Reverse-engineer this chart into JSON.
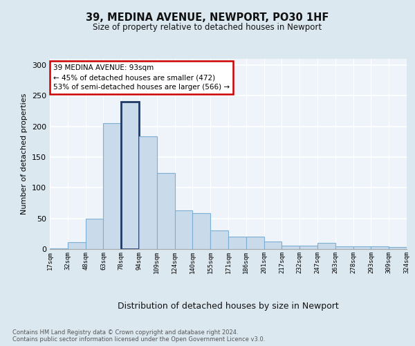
{
  "title1": "39, MEDINA AVENUE, NEWPORT, PO30 1HF",
  "title2": "Size of property relative to detached houses in Newport",
  "xlabel": "Distribution of detached houses by size in Newport",
  "ylabel": "Number of detached properties",
  "categories": [
    "17sqm",
    "32sqm",
    "48sqm",
    "63sqm",
    "78sqm",
    "94sqm",
    "109sqm",
    "124sqm",
    "140sqm",
    "155sqm",
    "171sqm",
    "186sqm",
    "201sqm",
    "217sqm",
    "232sqm",
    "247sqm",
    "263sqm",
    "278sqm",
    "293sqm",
    "309sqm",
    "324sqm"
  ],
  "values": [
    1,
    11,
    50,
    205,
    240,
    184,
    124,
    63,
    59,
    30,
    20,
    20,
    12,
    6,
    6,
    10,
    5,
    5,
    4,
    3
  ],
  "bar_color": "#c9daea",
  "bar_edge_color": "#7bafd4",
  "highlight_bar_index": 4,
  "highlight_bar_edge_color": "#1f3864",
  "annotation_text": "39 MEDINA AVENUE: 93sqm\n← 45% of detached houses are smaller (472)\n53% of semi-detached houses are larger (566) →",
  "annotation_box_color": "#ffffff",
  "annotation_border_color": "#cc0000",
  "ylim": [
    0,
    310
  ],
  "yticks": [
    0,
    50,
    100,
    150,
    200,
    250,
    300
  ],
  "footnote": "Contains HM Land Registry data © Crown copyright and database right 2024.\nContains public sector information licensed under the Open Government Licence v3.0.",
  "bg_color": "#dce8f0",
  "plot_bg_color": "#eef4f9",
  "grid_color": "#ffffff"
}
